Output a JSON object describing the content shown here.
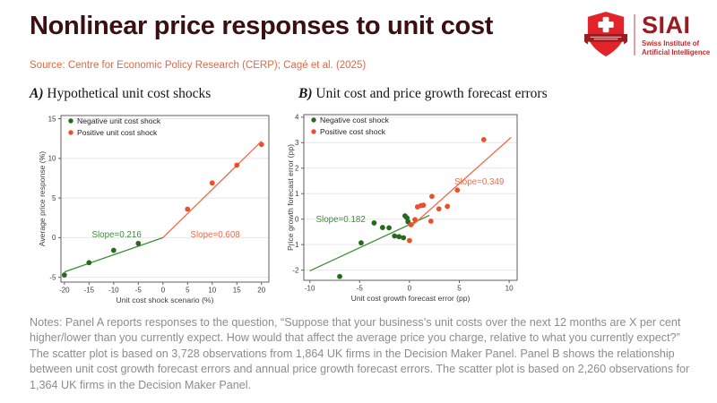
{
  "header": {
    "title": "Nonlinear price responses to unit cost",
    "source": "Source: Centre for Economic Policy Research (CERP); Cagé et al. (2025)"
  },
  "logo": {
    "acronym": "SIAI",
    "line1": "Swiss Institute of",
    "line2": "Artificial Intelligence"
  },
  "panels": [
    {
      "label_prefix": "A)",
      "label_rest": " Hypothetical unit cost shocks"
    },
    {
      "label_prefix": "B)",
      "label_rest": " Unit cost and price growth forecast errors"
    }
  ],
  "notes": "Notes: Panel A reports responses to the question, “Suppose that your business’s unit costs over the next 12 months are X per cent higher/lower than you currently expect. How would that affect the average price you charge, relative to what you currently expect?” The scatter plot is based on 3,728 observations from 1,864 UK firms in the Decision Maker Panel. Panel B shows the relationship between unit cost growth forecast errors and annual price growth forecast errors. The scatter plot is based on 2,260 observations for 1,364 UK firms in the Decision Maker Panel.",
  "colors": {
    "title": "#3c1012",
    "source": "#e06845",
    "notes": "#8c8c8c",
    "green": "#27691f",
    "green_line": "#3f8c3a",
    "orange": "#ee4f2a",
    "orange_line": "#f26a47",
    "grid": "#e7e7e7",
    "frame": "#5f5f5f",
    "logo_red": "#e2232a",
    "logo_dark_red": "#9c1b1f",
    "logo_text": "#9b1c20",
    "logo_sub": "#c4292e"
  },
  "chart_data": [
    {
      "type": "scatter",
      "panel": "A",
      "title": "A) Hypothetical unit cost shocks",
      "xlabel": "Unit cost shock scenario (%)",
      "ylabel": "Average price response (%)",
      "xlim": [
        -20.7,
        21.5
      ],
      "ylim": [
        -5.6,
        15.4
      ],
      "xticks": [
        -20,
        -15,
        -10,
        -5,
        0,
        5,
        10,
        15,
        20
      ],
      "yticks": [
        -5,
        0,
        5,
        10,
        15
      ],
      "grid": "horizontal",
      "legend_position": "top-left",
      "series": [
        {
          "name": "Negative unit cost shock",
          "color": "green",
          "line_color": "green_line",
          "points": [
            [
              -20,
              -4.7
            ],
            [
              -15,
              -3.15
            ],
            [
              -10,
              -1.6
            ],
            [
              -5,
              -0.72
            ]
          ],
          "fit_line": {
            "from": [
              -20,
              -4.32
            ],
            "to": [
              0,
              0
            ],
            "slope": 0.216
          }
        },
        {
          "name": "Positive unit cost shock",
          "color": "orange",
          "line_color": "orange_line",
          "points": [
            [
              5,
              3.6
            ],
            [
              10,
              6.9
            ],
            [
              15,
              9.15
            ],
            [
              20,
              11.75
            ]
          ],
          "fit_line": {
            "from": [
              0,
              0
            ],
            "to": [
              20,
              12.16
            ],
            "slope": 0.608
          }
        }
      ],
      "annotations": [
        {
          "text": "Slope=0.216",
          "x": -9.4,
          "y": 0.45,
          "color": "green_line"
        },
        {
          "text": "Slope=0.608",
          "x": 10.6,
          "y": 0.45,
          "color": "orange_line"
        }
      ]
    },
    {
      "type": "scatter",
      "panel": "B",
      "title": "B) Unit cost and price growth forecast errors",
      "xlabel": "Unit cost growth forecast error (pp)",
      "ylabel": "Price growth forecast error (pp)",
      "xlim": [
        -10.6,
        10.8
      ],
      "ylim": [
        -2.4,
        4.1
      ],
      "xticks": [
        -10,
        -5,
        0,
        5,
        10
      ],
      "yticks": [
        -2,
        -1,
        0,
        1,
        2,
        3,
        4
      ],
      "grid": "horizontal",
      "legend_position": "top-left",
      "series": [
        {
          "name": "Negative cost shock",
          "color": "green",
          "line_color": "green_line",
          "points": [
            [
              -7,
              -2.25
            ],
            [
              -4.85,
              -0.93
            ],
            [
              -3.55,
              -0.15
            ],
            [
              -2.7,
              -0.33
            ],
            [
              -2.05,
              -0.34
            ],
            [
              -1.5,
              -0.66
            ],
            [
              -1.05,
              -0.69
            ],
            [
              -0.6,
              -0.73
            ],
            [
              -0.45,
              0.13
            ],
            [
              -0.25,
              0.05
            ],
            [
              -0.15,
              -0.1
            ]
          ],
          "fit_line": {
            "from": [
              -10,
              -2.03
            ],
            "to": [
              2,
              0.15
            ],
            "slope": 0.182
          }
        },
        {
          "name": "Positive cost shock",
          "color": "orange",
          "line_color": "orange_line",
          "points": [
            [
              0,
              -0.84
            ],
            [
              0.15,
              -0.22
            ],
            [
              0.55,
              -0.02
            ],
            [
              0.8,
              0.48
            ],
            [
              1.15,
              0.53
            ],
            [
              1.4,
              0.55
            ],
            [
              2.15,
              -0.08
            ],
            [
              2.25,
              0.89
            ],
            [
              2.95,
              0.4
            ],
            [
              3.8,
              0.5
            ],
            [
              4.8,
              1.14
            ],
            [
              7.45,
              3.12
            ]
          ],
          "fit_line": {
            "from": [
              0.2,
              -0.28
            ],
            "to": [
              10.2,
              3.21
            ],
            "slope": 0.349
          }
        }
      ],
      "annotations": [
        {
          "text": "Slope=0.182",
          "x": -6.9,
          "y": 0.0,
          "color": "green_line"
        },
        {
          "text": "Slope=0.349",
          "x": 7.0,
          "y": 1.48,
          "color": "orange_line"
        }
      ]
    }
  ]
}
